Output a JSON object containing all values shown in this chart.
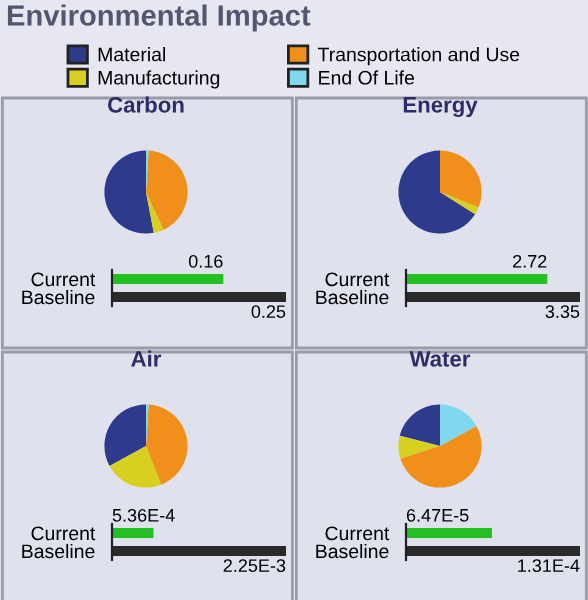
{
  "chart_data": [
    {
      "type": "pie",
      "title": "Carbon",
      "legend": "top",
      "legend_title": "Environmental Impact",
      "categories": [
        "Material",
        "Manufacturing",
        "Transportation and Use",
        "End Of Life"
      ],
      "values": [
        53,
        4,
        42,
        1
      ],
      "colors": [
        "#2e3a8c",
        "#d8d020",
        "#f0901a",
        "#7fd8ee"
      ]
    },
    {
      "type": "bar",
      "orientation": "horizontal",
      "categories": [
        "Current",
        "Baseline"
      ],
      "values": [
        0.16,
        0.25
      ],
      "value_labels": [
        "0.16",
        "0.25"
      ],
      "colors": [
        "#22c022",
        "#2a2a2a"
      ]
    },
    {
      "type": "pie",
      "title": "Energy",
      "categories": [
        null,
        null,
        null,
        null
      ],
      "values": [
        66,
        3,
        31,
        0
      ],
      "colors": [
        "#2e3a8c",
        "#d8d020",
        "#f0901a",
        "#7fd8ee"
      ]
    },
    {
      "type": "bar",
      "orientation": "horizontal",
      "categories": [
        "Current",
        "Baseline"
      ],
      "values": [
        2.72,
        3.35
      ],
      "value_labels": [
        "2.72",
        "3.35"
      ],
      "colors": [
        "#22c022",
        "#2a2a2a"
      ]
    },
    {
      "type": "pie",
      "title": "Air",
      "categories": [
        null,
        null,
        null,
        null
      ],
      "values": [
        33,
        23,
        43,
        1
      ],
      "colors": [
        "#2e3a8c",
        "#d8d020",
        "#f0901a",
        "#7fd8ee"
      ]
    },
    {
      "type": "bar",
      "orientation": "horizontal",
      "categories": [
        "Current",
        "Baseline"
      ],
      "values": [
        0.000536,
        0.00225
      ],
      "value_labels": [
        "5.36E-4",
        "2.25E-3"
      ],
      "colors": [
        "#22c022",
        "#2a2a2a"
      ]
    },
    {
      "type": "pie",
      "title": "Water",
      "categories": [
        null,
        null,
        null,
        null
      ],
      "values": [
        21,
        9,
        53,
        17
      ],
      "colors": [
        "#2e3a8c",
        "#d8d020",
        "#f0901a",
        "#7fd8ee"
      ]
    },
    {
      "type": "bar",
      "orientation": "horizontal",
      "categories": [
        "Current",
        "Baseline"
      ],
      "values": [
        6.47e-05,
        0.000131
      ],
      "value_labels": [
        "6.47E-5",
        "1.31E-4"
      ],
      "colors": [
        "#22c022",
        "#2a2a2a"
      ]
    }
  ]
}
